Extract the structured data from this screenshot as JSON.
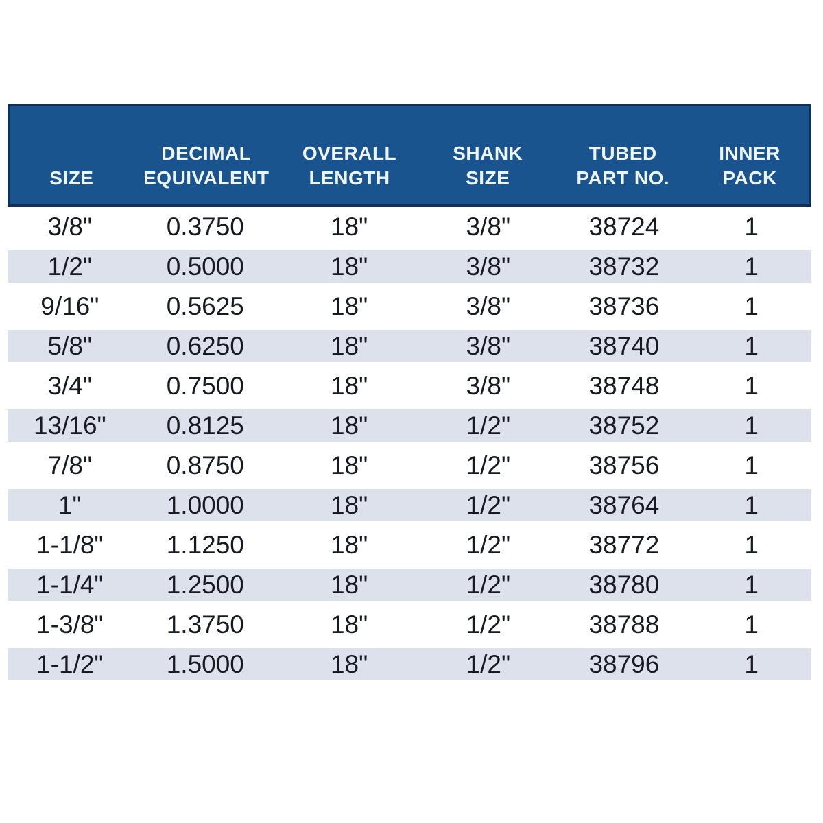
{
  "theme": {
    "header_bg": "#1a548e",
    "header_border": "#112f54",
    "header_text": "#eef5fb",
    "row_alt": "#dce1ec",
    "text": "#171a21"
  },
  "table": {
    "columns": [
      {
        "id": "size",
        "label": "SIZE"
      },
      {
        "id": "decimal_equivalent",
        "label": "DECIMAL\nEQUIVALENT"
      },
      {
        "id": "overall_length",
        "label": "OVERALL\nLENGTH"
      },
      {
        "id": "shank_size",
        "label": "SHANK\nSIZE"
      },
      {
        "id": "tubed_part_no",
        "label": "TUBED\nPART NO."
      },
      {
        "id": "inner_pack",
        "label": "INNER\nPACK"
      }
    ],
    "rows": [
      [
        "3/8\"",
        "0.3750",
        "18\"",
        "3/8\"",
        "38724",
        "1"
      ],
      [
        "1/2\"",
        "0.5000",
        "18\"",
        "3/8\"",
        "38732",
        "1"
      ],
      [
        "9/16\"",
        "0.5625",
        "18\"",
        "3/8\"",
        "38736",
        "1"
      ],
      [
        "5/8\"",
        "0.6250",
        "18\"",
        "3/8\"",
        "38740",
        "1"
      ],
      [
        "3/4\"",
        "0.7500",
        "18\"",
        "3/8\"",
        "38748",
        "1"
      ],
      [
        "13/16\"",
        "0.8125",
        "18\"",
        "1/2\"",
        "38752",
        "1"
      ],
      [
        "7/8\"",
        "0.8750",
        "18\"",
        "1/2\"",
        "38756",
        "1"
      ],
      [
        "1\"",
        "1.0000",
        "18\"",
        "1/2\"",
        "38764",
        "1"
      ],
      [
        "1-1/8\"",
        "1.1250",
        "18\"",
        "1/2\"",
        "38772",
        "1"
      ],
      [
        "1-1/4\"",
        "1.2500",
        "18\"",
        "1/2\"",
        "38780",
        "1"
      ],
      [
        "1-3/8\"",
        "1.3750",
        "18\"",
        "1/2\"",
        "38788",
        "1"
      ],
      [
        "1-1/2\"",
        "1.5000",
        "18\"",
        "1/2\"",
        "38796",
        "1"
      ]
    ]
  }
}
